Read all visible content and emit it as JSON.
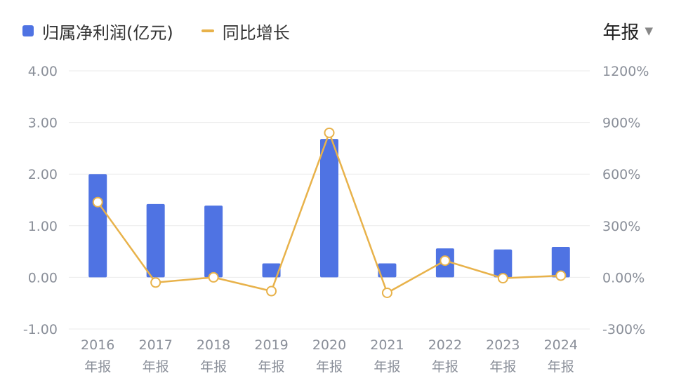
{
  "legend": {
    "bar_label": "归属净利润(亿元)",
    "line_label": "同比增长"
  },
  "period_selector": {
    "label": "年报",
    "icon": "caret-down-icon"
  },
  "colors": {
    "bar": "#4f73e3",
    "line": "#e8b24a",
    "grid": "#ebebeb",
    "tick_text": "#8a8f99"
  },
  "chart_data": {
    "type": "bar",
    "categories": [
      "2016",
      "2017",
      "2018",
      "2019",
      "2020",
      "2021",
      "2022",
      "2023",
      "2024"
    ],
    "category_sublabel": "年报",
    "series": [
      {
        "name": "归属净利润(亿元)",
        "type": "bar",
        "axis": "left",
        "values": [
          2.0,
          1.42,
          1.39,
          0.27,
          2.68,
          0.27,
          0.56,
          0.54,
          0.59
        ]
      },
      {
        "name": "同比增长",
        "type": "line",
        "axis": "right",
        "values": [
          437,
          -30,
          0,
          -80,
          840,
          -90,
          97,
          -5,
          10
        ]
      }
    ],
    "y_left": {
      "ylim": [
        -1.0,
        4.0
      ],
      "ticks": [
        "4.00",
        "3.00",
        "2.00",
        "1.00",
        "0.00",
        "-1.00"
      ]
    },
    "y_right": {
      "ylim": [
        -300,
        1200
      ],
      "ticks": [
        "1200%",
        "900%",
        "600%",
        "300%",
        "0.00%",
        "-300%"
      ]
    },
    "grid": true,
    "legend_position": "top-left"
  }
}
